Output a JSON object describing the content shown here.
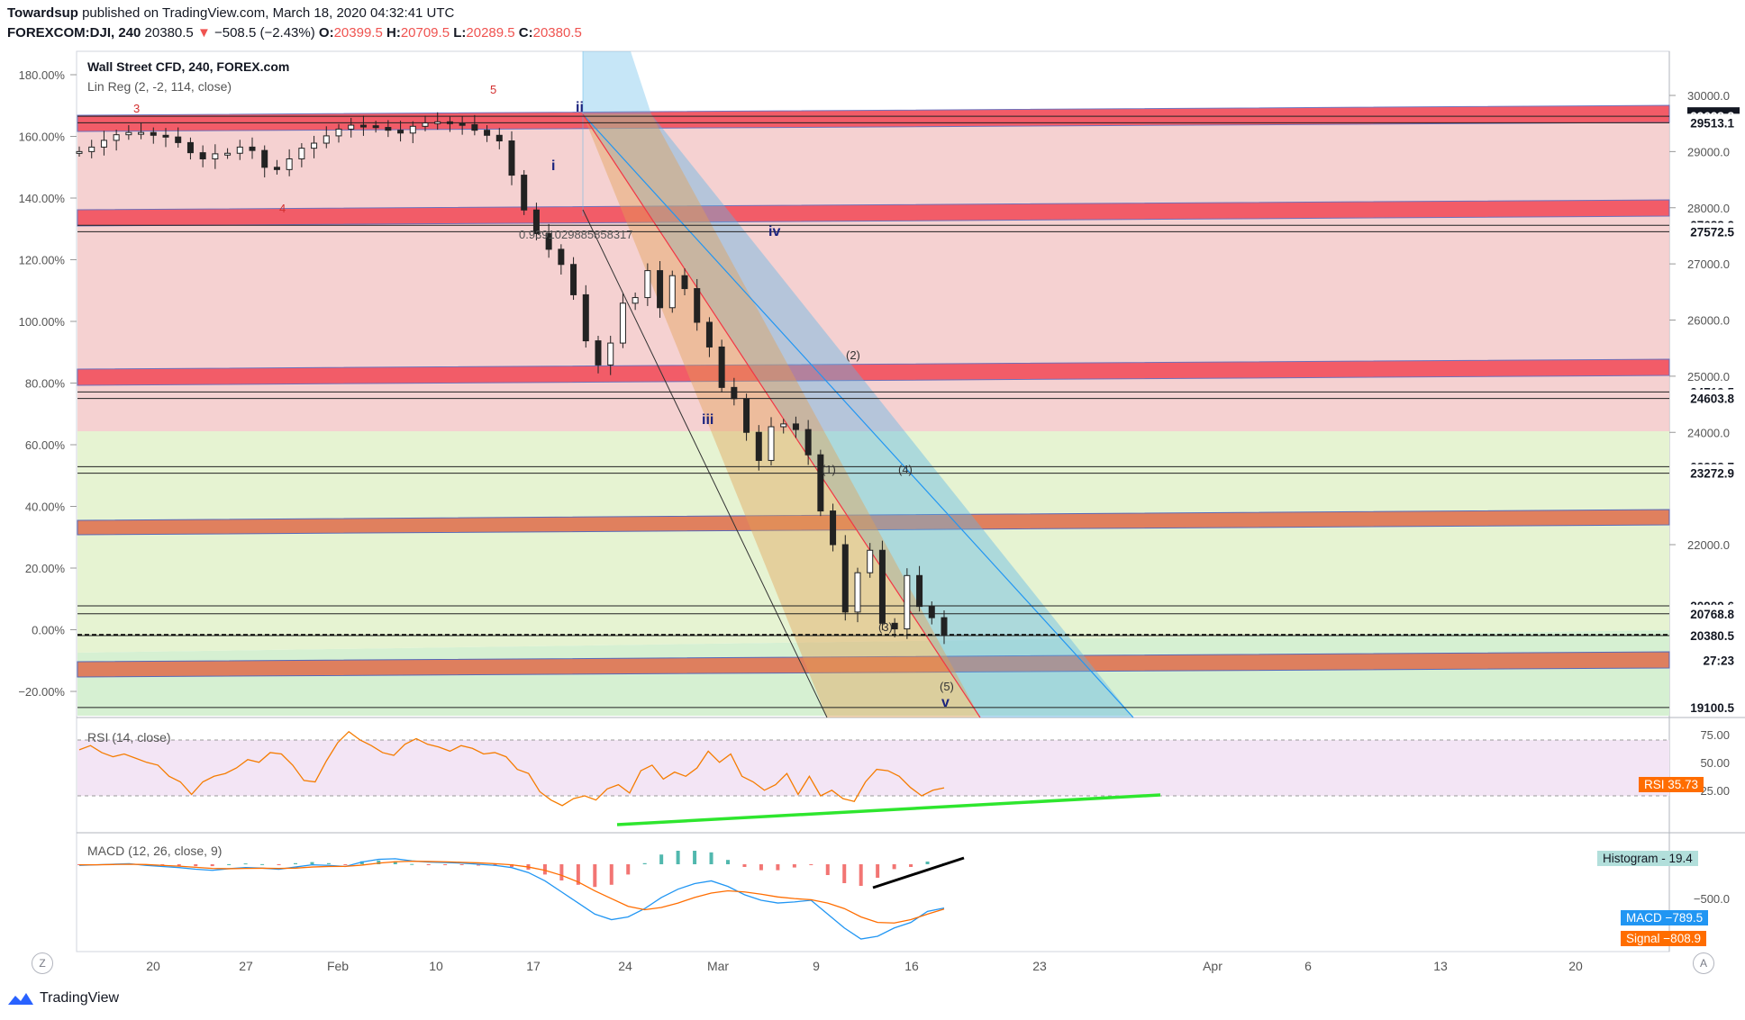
{
  "header": {
    "publisher": "Towardsup",
    "published_text": "published on TradingView.com, March 18, 2020 04:32:41 UTC",
    "symbol": "FOREXCOM:DJI, 240",
    "last": "20380.5",
    "change_arrow": "▼",
    "change": "−508.5 (−2.43%)",
    "o_label": "O:",
    "o": "20399.5",
    "h_label": "H:",
    "h": "20709.5",
    "l_label": "L:",
    "l": "20289.5",
    "c_label": "C:",
    "c": "20380.5"
  },
  "legend": {
    "title": "Wall Street CFD, 240, FOREX.com",
    "linreg": "Lin Reg (2, -2, 114, close)",
    "rsi": "RSI (14, close)",
    "macd": "MACD (12, 26, close, 9)"
  },
  "footer": {
    "brand": "TradingView",
    "z_button": "Z",
    "a_button": "A"
  },
  "colors": {
    "up": "#26a69a",
    "down": "#ef5350",
    "red_band": "#f23645",
    "orange_band": "#e06c4a",
    "pink_zone": "#f4cccc",
    "green_zone": "#e8f5d6",
    "rsi_line": "#f57c00",
    "rsi_zone": "#f3e5f5",
    "green_trend": "#2ee62e",
    "macd_line": "#2196f3",
    "signal_line": "#ff6d00"
  },
  "chart_data": [
    {
      "type": "candlestick",
      "title": "Wall Street CFD, 240, FOREX.com",
      "x_ticks": [
        "20",
        "27",
        "Feb",
        "10",
        "17",
        "24",
        "Mar",
        "9",
        "16",
        "23",
        "Apr",
        "6",
        "13",
        "20"
      ],
      "y_pct_ticks": [
        "180.00%",
        "160.00%",
        "140.00%",
        "120.00%",
        "100.00%",
        "80.00%",
        "60.00%",
        "40.00%",
        "20.00%",
        "0.00%",
        "−20.00%"
      ],
      "y_price_ticks": [
        30000.0,
        29000.0,
        28000.0,
        27000.0,
        26000.0,
        25000.0,
        24000.0,
        22000.0
      ],
      "y_price_tick_labels": [
        "30000.0",
        "29000.0",
        "28000.0",
        "27000.0",
        "26000.0",
        "25000.0",
        "24000.0",
        "22000.0"
      ],
      "price_range": [
        18900,
        30500
      ],
      "price_levels": [
        {
          "label": "29628.8",
          "value": 29628.8,
          "style": "dark"
        },
        {
          "label": "29513.1",
          "value": 29513.1,
          "style": "white"
        },
        {
          "label": "27688.2",
          "value": 27688.2,
          "style": "white"
        },
        {
          "label": "27572.5",
          "value": 27572.5,
          "style": "white"
        },
        {
          "label": "24719.5",
          "value": 24719.5,
          "style": "white"
        },
        {
          "label": "24603.8",
          "value": 24603.8,
          "style": "white"
        },
        {
          "label": "23388.7",
          "value": 23388.7,
          "style": "white"
        },
        {
          "label": "23272.9",
          "value": 23272.9,
          "style": "white"
        },
        {
          "label": "20909.6",
          "value": 20909.6,
          "style": "white"
        },
        {
          "label": "20768.8",
          "value": 20768.8,
          "style": "white"
        },
        {
          "label": "20380.5",
          "value": 20380.5,
          "style": "white"
        },
        {
          "label": "27:23",
          "value": 19940,
          "style": "white"
        },
        {
          "label": "19100.5",
          "value": 19100.5,
          "style": "white"
        }
      ],
      "close_series": [
        29000,
        29080,
        29200,
        29300,
        29340,
        29340,
        29290,
        29260,
        29160,
        28980,
        28870,
        28960,
        28970,
        29080,
        29020,
        28720,
        28680,
        28870,
        29060,
        29150,
        29280,
        29400,
        29470,
        29460,
        29430,
        29380,
        29330,
        29450,
        29510,
        29530,
        29500,
        29480,
        29380,
        29290,
        29190,
        28580,
        27960,
        27540,
        27260,
        26990,
        26450,
        25630,
        25200,
        25590,
        26300,
        26400,
        26880,
        26220,
        26790,
        26560,
        25960,
        25520,
        24800,
        24600,
        24000,
        23500,
        24100,
        24150,
        24050,
        23600,
        22600,
        22000,
        20800,
        21500,
        21900,
        20600,
        20500,
        21450,
        20900,
        20700,
        20380
      ],
      "fib_label": "0.9391029885858317",
      "wave_labels": [
        "3",
        "5",
        "4",
        "ii",
        "i",
        "iii",
        "iv",
        "(2)",
        "(1)",
        "(4)",
        "(3)",
        "(5)",
        "v"
      ]
    },
    {
      "type": "line",
      "title": "RSI (14, close)",
      "y_ticks": [
        "75.00",
        "50.00",
        "25.00"
      ],
      "y_range": [
        15,
        85
      ],
      "series": [
        {
          "values": [
            63,
            66,
            61,
            58,
            60,
            57,
            54,
            52,
            44,
            40,
            31,
            40,
            44,
            46,
            50,
            56,
            54,
            61,
            60,
            52,
            41,
            40,
            55,
            68,
            76,
            70,
            66,
            61,
            59,
            67,
            71,
            67,
            65,
            62,
            66,
            64,
            60,
            61,
            58,
            49,
            46,
            33,
            27,
            23,
            28,
            30,
            27,
            35,
            38,
            32,
            48,
            52,
            42,
            47,
            44,
            50,
            62,
            54,
            60,
            44,
            40,
            34,
            38,
            46,
            31,
            44,
            30,
            34,
            28,
            26,
            40,
            49,
            48,
            44,
            36,
            30,
            34,
            35.73
          ]
        }
      ],
      "value_tag": {
        "label": "RSI",
        "value": "35.73"
      }
    },
    {
      "type": "line",
      "title": "MACD (12, 26, close, 9)",
      "y_ticks": [
        "−500.0"
      ],
      "y_range": [
        -1500,
        200
      ],
      "series": [
        {
          "name": "MACD",
          "values": [
            -20,
            -10,
            0,
            10,
            -20,
            -40,
            -60,
            -90,
            -110,
            -80,
            -60,
            -70,
            -90,
            -50,
            -10,
            -20,
            -40,
            40,
            90,
            100,
            60,
            40,
            30,
            20,
            0,
            -20,
            -60,
            -150,
            -300,
            -500,
            -700,
            -900,
            -1000,
            -950,
            -800,
            -600,
            -450,
            -350,
            -300,
            -400,
            -550,
            -650,
            -700,
            -680,
            -650,
            -900,
            -1150,
            -1350,
            -1300,
            -1150,
            -1050,
            -850,
            -789.5
          ]
        },
        {
          "name": "Signal",
          "values": [
            -10,
            -10,
            -5,
            0,
            -5,
            -20,
            -35,
            -55,
            -75,
            -80,
            -75,
            -72,
            -75,
            -70,
            -50,
            -40,
            -38,
            -15,
            20,
            45,
            55,
            50,
            45,
            35,
            25,
            10,
            -10,
            -50,
            -110,
            -200,
            -320,
            -480,
            -620,
            -760,
            -820,
            -780,
            -700,
            -600,
            -520,
            -480,
            -500,
            -540,
            -590,
            -620,
            -640,
            -700,
            -800,
            -950,
            -1050,
            -1060,
            -1000,
            -900,
            -808.9
          ]
        }
      ],
      "histogram_tag": {
        "label": "Histogram",
        "value": "19.4"
      },
      "macd_tag": {
        "label": "MACD",
        "value": "−789.5"
      },
      "signal_tag": {
        "label": "Signal",
        "value": "−808.9"
      }
    }
  ]
}
